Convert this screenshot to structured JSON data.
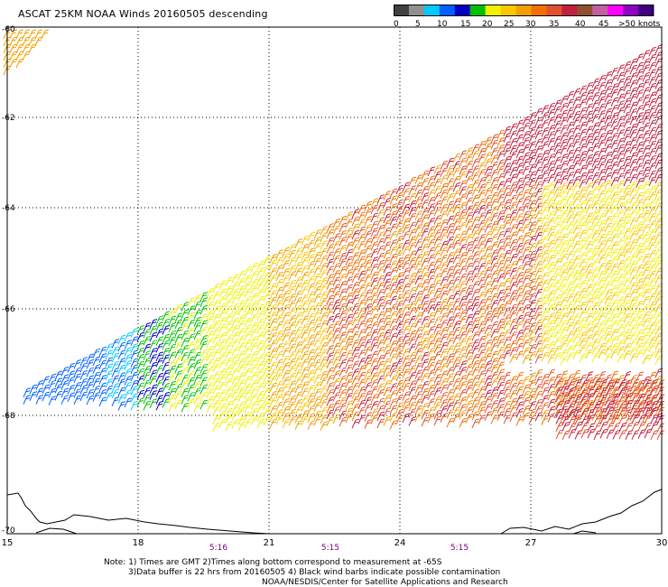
{
  "title": "ASCAT 25KM NOAA Winds 20160505 descending",
  "colorbar": {
    "colors": [
      "#404040",
      "#909090",
      "#00c8ff",
      "#0060ff",
      "#0000c0",
      "#00c000",
      "#f0f000",
      "#f8c800",
      "#f0a000",
      "#f07000",
      "#e05030",
      "#c02040",
      "#905030",
      "#c060a0",
      "#ff00ff",
      "#9000c0",
      "#400080"
    ],
    "labels": [
      "0",
      "5",
      "10",
      "15",
      "20",
      "25",
      "30",
      "35",
      "40",
      "45",
      ">50 knots"
    ]
  },
  "map": {
    "lat_labels": [
      "-60",
      "-62",
      "-64",
      "-66",
      "-68",
      "-70"
    ],
    "lon_labels": [
      "15",
      "18",
      "21",
      "24",
      "27",
      "30"
    ],
    "time_labels": [
      "5:16",
      "5:15",
      "5:15"
    ]
  },
  "notes": {
    "line1": "Note: 1) Times are GMT 2)Times along bottom correspond to measurement at -65S",
    "line2": "3)Data buffer is 22 hrs from 20160505 4) Black wind barbs indicate possible contamination",
    "line3": "NOAA/NESDIS/Center for Satellite Applications and Research"
  }
}
